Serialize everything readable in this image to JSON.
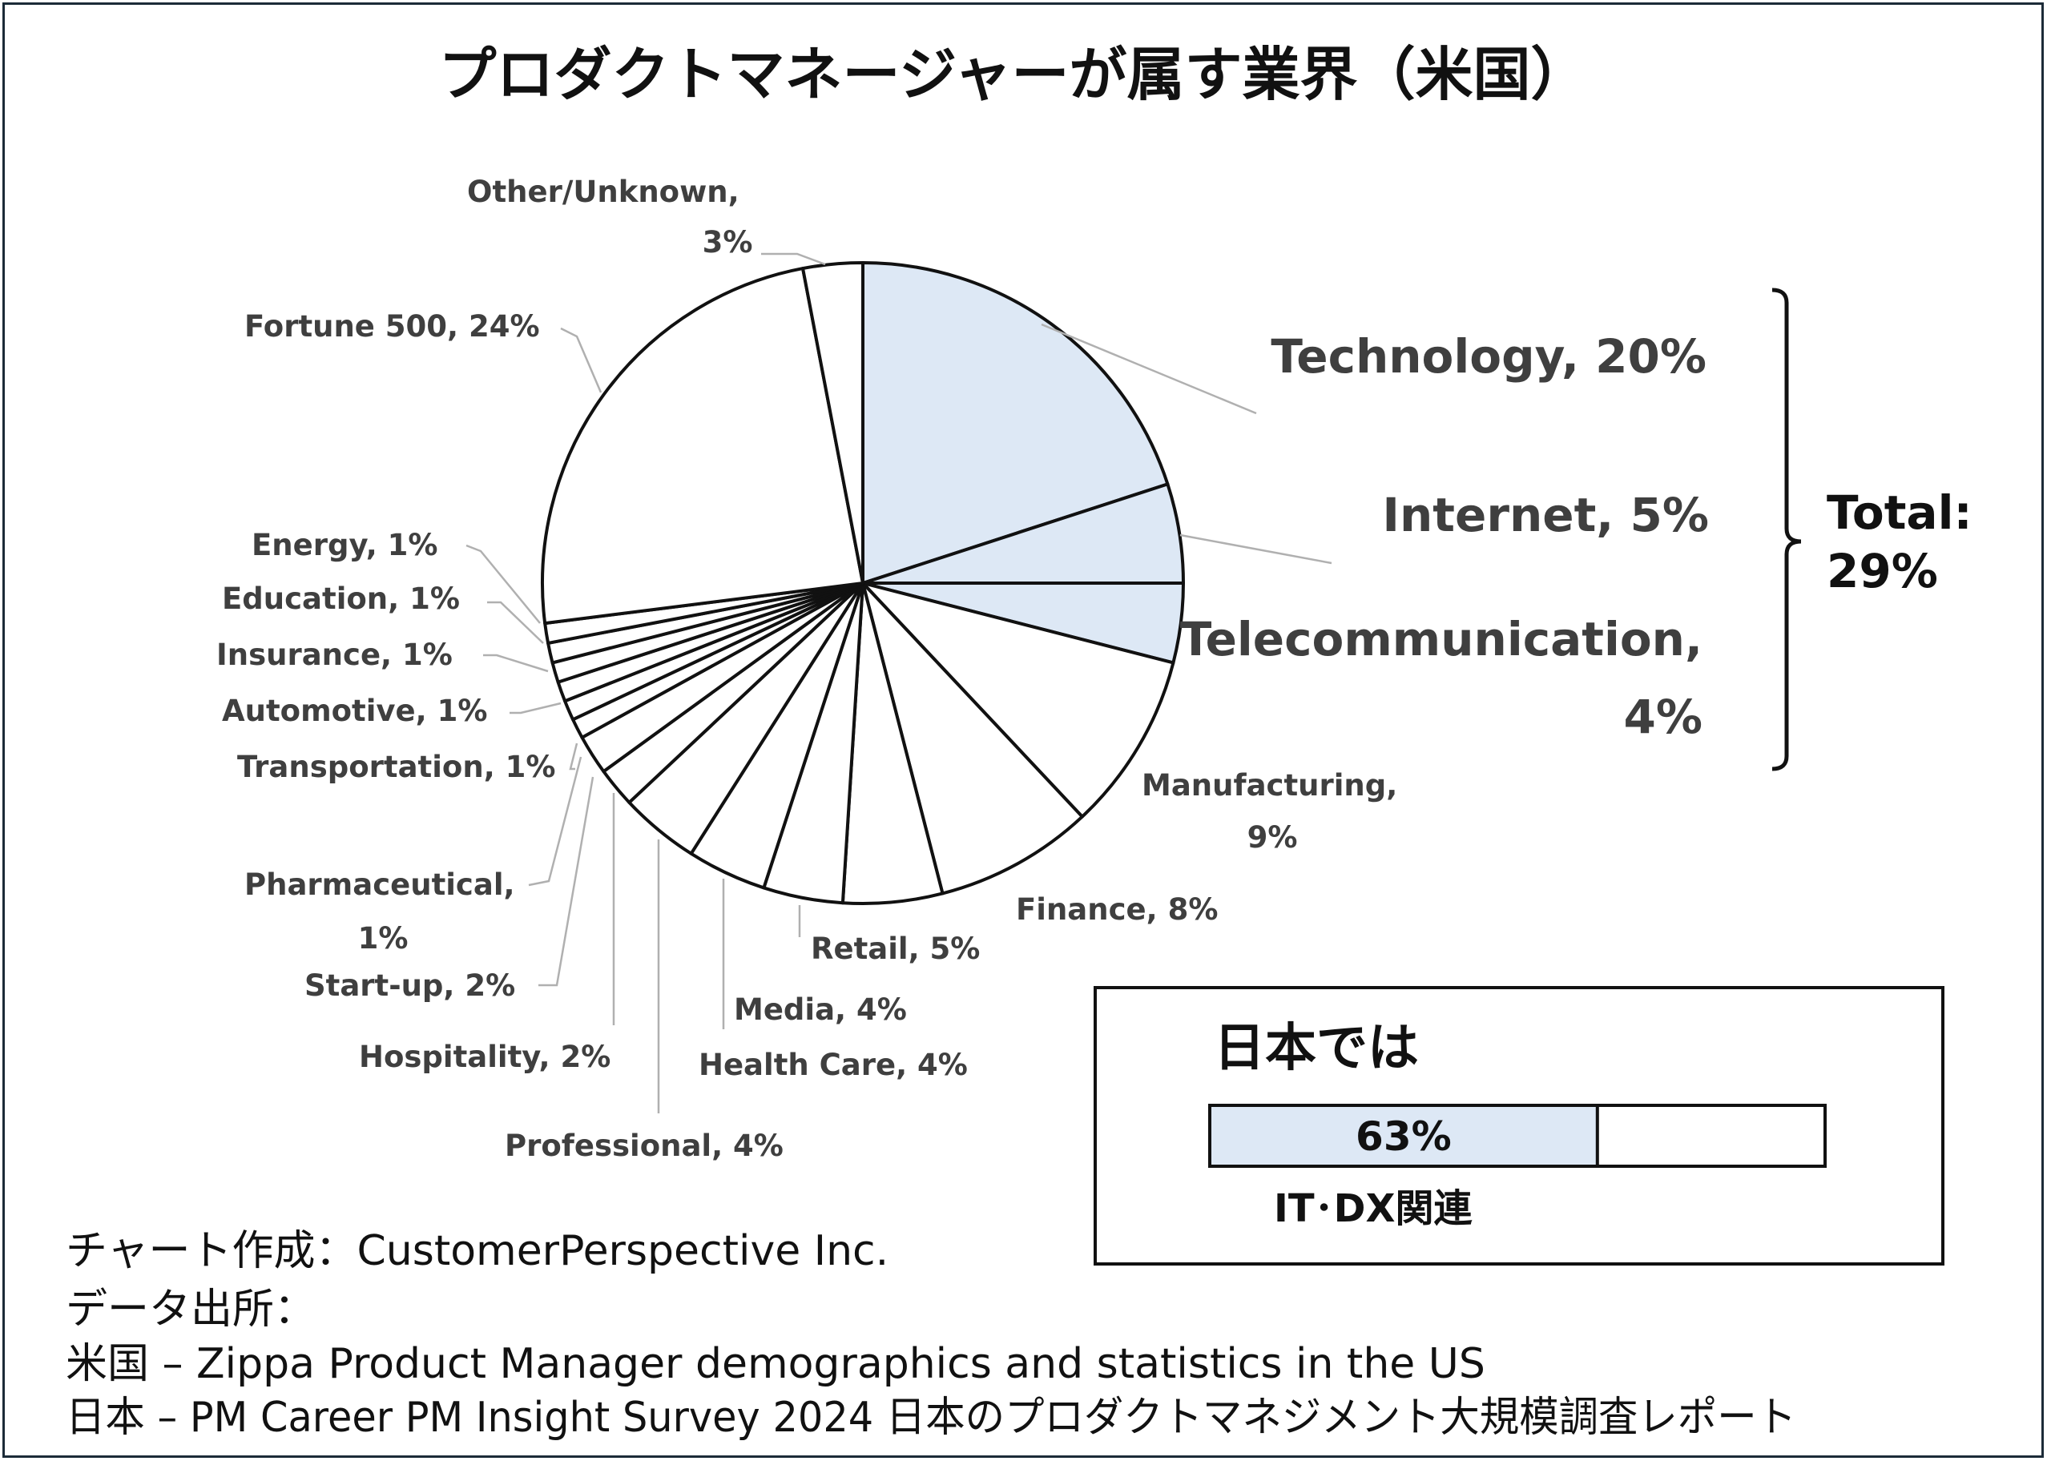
{
  "chart_data": {
    "type": "pie",
    "title": "プロダクトマネージャーが属す業界（米国）",
    "slices": [
      {
        "label": "Technology",
        "text": "Technology, 20%",
        "value": 20,
        "highlight": true
      },
      {
        "label": "Internet",
        "text": "Internet, 5%",
        "value": 5,
        "highlight": true
      },
      {
        "label": "Telecommunication",
        "text_lines": [
          "Telecommunication,",
          "4%"
        ],
        "value": 4,
        "highlight": true
      },
      {
        "label": "Manufacturing",
        "text_lines": [
          "Manufacturing,",
          "9%"
        ],
        "value": 9
      },
      {
        "label": "Finance",
        "text": "Finance, 8%",
        "value": 8
      },
      {
        "label": "Retail",
        "text": "Retail, 5%",
        "value": 5
      },
      {
        "label": "Media",
        "text": "Media, 4%",
        "value": 4
      },
      {
        "label": "Health Care",
        "text": "Health Care, 4%",
        "value": 4
      },
      {
        "label": "Professional",
        "text": "Professional, 4%",
        "value": 4
      },
      {
        "label": "Hospitality",
        "text": "Hospitality, 2%",
        "value": 2
      },
      {
        "label": "Start-up",
        "text": "Start-up, 2%",
        "value": 2
      },
      {
        "label": "Pharmaceutical",
        "text_lines": [
          "Pharmaceutical,",
          "1%"
        ],
        "value": 1
      },
      {
        "label": "Transportation",
        "text": "Transportation, 1%",
        "value": 1
      },
      {
        "label": "Automotive",
        "text": "Automotive, 1%",
        "value": 1
      },
      {
        "label": "Insurance",
        "text": "Insurance, 1%",
        "value": 1
      },
      {
        "label": "Education",
        "text": "Education, 1%",
        "value": 1
      },
      {
        "label": "Energy",
        "text": "Energy, 1%",
        "value": 1
      },
      {
        "label": "Fortune 500",
        "text": "Fortune 500, 24%",
        "value": 24
      },
      {
        "label": "Other/Unknown",
        "text_lines": [
          "Other/Unknown,",
          "3%"
        ],
        "value": 3
      }
    ],
    "bracket_total": {
      "lines": [
        "Total:",
        "29%"
      ],
      "value": 29
    },
    "colors": {
      "highlight": "#dde8f5",
      "other": "#ffffff",
      "outline": "#111111"
    }
  },
  "japan_box": {
    "heading": "日本では",
    "bar_value": 63,
    "bar_label": "63%",
    "caption": "IT･DX関連"
  },
  "source_lines": [
    "チャート作成：CustomerPerspective Inc.",
    "データ出所：",
    "米国 – Zippa Product Manager demographics and statistics in the US",
    "日本 – PM Career PM Insight Survey 2024 日本のプロダクトマネジメント大規模調査レポート"
  ]
}
